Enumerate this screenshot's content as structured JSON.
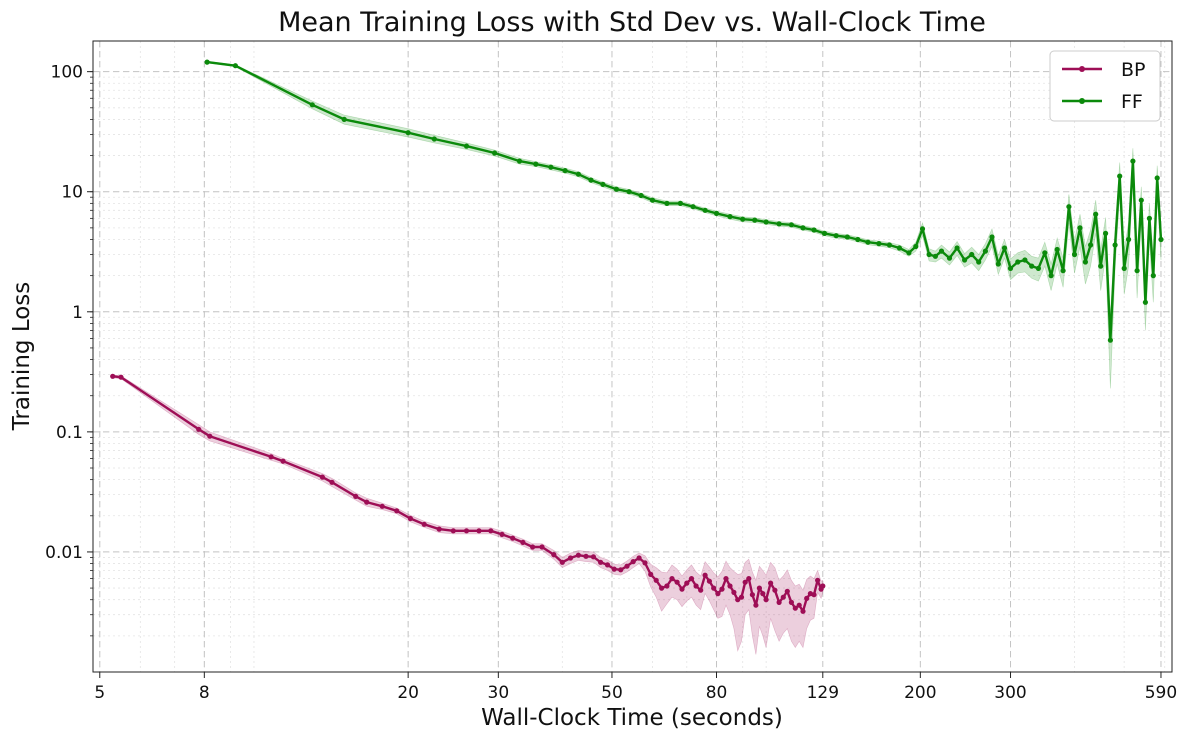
{
  "chart_data": {
    "type": "line",
    "title": "Mean Training Loss with Std Dev vs. Wall-Clock Time",
    "xlabel": "Wall-Clock Time (seconds)",
    "ylabel": "Training Loss",
    "xscale": "log",
    "yscale": "log",
    "xlim": [
      4.85,
      620
    ],
    "ylim": [
      0.001,
      180
    ],
    "grid": true,
    "legend_position": "top-right",
    "x_ticks": [
      5,
      8,
      20,
      30,
      50,
      80,
      129,
      200,
      300,
      590
    ],
    "x_tick_labels": [
      "5",
      "8",
      "20",
      "30",
      "50",
      "80",
      "129",
      "200",
      "300",
      "590"
    ],
    "y_ticks": [
      0.01,
      0.1,
      1,
      10,
      100
    ],
    "y_tick_labels": [
      "0.01",
      "0.1",
      "1",
      "10",
      "100"
    ],
    "series": [
      {
        "name": "BP",
        "color": "#9e0e56",
        "x": [
          5.3,
          5.5,
          7.8,
          8.2,
          10.8,
          11.4,
          13.6,
          14.2,
          15.8,
          16.6,
          17.8,
          19.0,
          20.2,
          21.5,
          23.0,
          24.5,
          26.0,
          27.5,
          29.0,
          30.5,
          32.0,
          33.5,
          35.0,
          36.5,
          38.5,
          40.0,
          41.5,
          43.0,
          44.5,
          46.0,
          47.5,
          49.0,
          50.5,
          52.0,
          53.5,
          55.0,
          56.5,
          58.0,
          59.5,
          61.0,
          62.5,
          64.0,
          65.5,
          67.0,
          68.5,
          70.0,
          71.5,
          73.0,
          74.5,
          76.0,
          77.5,
          79.0,
          80.5,
          82.0,
          83.5,
          85.0,
          86.5,
          88.0,
          89.5,
          91.0,
          92.5,
          94.0,
          95.5,
          97.0,
          98.5,
          100.0,
          102.0,
          104.0,
          106.0,
          108.0,
          110.0,
          112.0,
          114.0,
          116.0,
          118.0,
          120.0,
          122.0,
          124.0,
          126.0,
          128.0,
          129.0
        ],
        "values": [
          0.29,
          0.285,
          0.105,
          0.092,
          0.062,
          0.057,
          0.042,
          0.038,
          0.029,
          0.026,
          0.024,
          0.022,
          0.019,
          0.017,
          0.0155,
          0.015,
          0.015,
          0.015,
          0.015,
          0.014,
          0.013,
          0.012,
          0.011,
          0.011,
          0.0095,
          0.0082,
          0.0089,
          0.0094,
          0.0092,
          0.0091,
          0.0082,
          0.0078,
          0.0072,
          0.0071,
          0.0076,
          0.0083,
          0.0089,
          0.0081,
          0.0065,
          0.0058,
          0.005,
          0.0052,
          0.006,
          0.0056,
          0.0049,
          0.0055,
          0.006,
          0.0052,
          0.0048,
          0.0064,
          0.0057,
          0.005,
          0.0045,
          0.0049,
          0.006,
          0.0052,
          0.0046,
          0.004,
          0.0042,
          0.0056,
          0.006,
          0.0044,
          0.0036,
          0.005,
          0.0045,
          0.004,
          0.0055,
          0.0048,
          0.0038,
          0.0042,
          0.0047,
          0.0038,
          0.0034,
          0.0036,
          0.0032,
          0.0041,
          0.0045,
          0.0044,
          0.0058,
          0.0049,
          0.0052
        ],
        "std": [
          0.008,
          0.008,
          0.01,
          0.008,
          0.004,
          0.003,
          0.003,
          0.003,
          0.002,
          0.002,
          0.0015,
          0.0012,
          0.0012,
          0.001,
          0.001,
          0.0009,
          0.0009,
          0.0009,
          0.0009,
          0.0009,
          0.0008,
          0.0008,
          0.0007,
          0.0007,
          0.0008,
          0.0008,
          0.0009,
          0.0009,
          0.0009,
          0.0009,
          0.0008,
          0.0008,
          0.0007,
          0.0007,
          0.0008,
          0.0009,
          0.0009,
          0.0012,
          0.0014,
          0.0016,
          0.0018,
          0.0015,
          0.0018,
          0.0016,
          0.0014,
          0.0016,
          0.0018,
          0.0016,
          0.0015,
          0.0019,
          0.0018,
          0.0017,
          0.0017,
          0.002,
          0.0024,
          0.0022,
          0.0023,
          0.0025,
          0.0024,
          0.0026,
          0.0027,
          0.0024,
          0.0022,
          0.0026,
          0.0025,
          0.0024,
          0.0027,
          0.0026,
          0.002,
          0.0021,
          0.0024,
          0.002,
          0.0018,
          0.0018,
          0.0016,
          0.0018,
          0.0018,
          0.0016,
          0.0012,
          0.0008,
          0.0006
        ]
      },
      {
        "name": "FF",
        "color": "#0b8a0b",
        "x": [
          8.1,
          9.2,
          13.0,
          15.0,
          20.0,
          22.5,
          26.0,
          29.5,
          33.0,
          35.5,
          38.0,
          40.5,
          43.0,
          45.5,
          48.0,
          51.0,
          54.0,
          57.0,
          60.0,
          64.0,
          68.0,
          72.0,
          76.0,
          80.0,
          85.0,
          90.0,
          95.0,
          100.0,
          106.0,
          112.0,
          118.0,
          124.0,
          130.0,
          137.0,
          144.0,
          151.0,
          158.0,
          166.0,
          174.0,
          182.0,
          190.0,
          196.0,
          202.0,
          208.0,
          214.0,
          220.0,
          228.0,
          236.0,
          244.0,
          252.0,
          260.0,
          268.0,
          276.0,
          284.0,
          292.0,
          300.0,
          310.0,
          320.0,
          330.0,
          340.0,
          350.0,
          360.0,
          370.0,
          380.0,
          390.0,
          400.0,
          410.0,
          420.0,
          430.0,
          440.0,
          450.0,
          460.0,
          470.0,
          480.0,
          490.0,
          500.0,
          510.0,
          520.0,
          530.0,
          540.0,
          550.0,
          560.0,
          570.0,
          580.0,
          590.0
        ],
        "values": [
          120,
          112,
          53,
          40,
          31,
          27.5,
          24,
          21,
          18,
          17,
          16,
          15,
          14,
          12.5,
          11.5,
          10.5,
          10,
          9.3,
          8.5,
          8.0,
          8.0,
          7.5,
          7.0,
          6.6,
          6.2,
          5.9,
          5.8,
          5.6,
          5.4,
          5.3,
          5.0,
          4.8,
          4.5,
          4.3,
          4.2,
          4.0,
          3.8,
          3.7,
          3.6,
          3.4,
          3.1,
          3.5,
          4.9,
          3.0,
          2.9,
          3.2,
          2.8,
          3.4,
          2.7,
          3.0,
          2.6,
          3.2,
          4.2,
          2.5,
          3.4,
          2.3,
          2.6,
          2.7,
          2.4,
          2.3,
          3.1,
          2.0,
          3.3,
          2.2,
          7.5,
          3.0,
          5.0,
          2.6,
          3.6,
          6.5,
          2.4,
          4.5,
          0.58,
          3.6,
          13.5,
          2.3,
          4.0,
          18,
          2.2,
          8.5,
          1.2,
          6.0,
          2.0,
          13,
          4.0
        ],
        "std": [
          2.0,
          2.0,
          4.0,
          3.5,
          2.5,
          2.0,
          1.5,
          1.2,
          1.0,
          0.8,
          0.8,
          0.7,
          0.7,
          0.6,
          0.55,
          0.5,
          0.45,
          0.4,
          0.4,
          0.35,
          0.35,
          0.3,
          0.3,
          0.3,
          0.3,
          0.28,
          0.27,
          0.25,
          0.24,
          0.23,
          0.22,
          0.2,
          0.2,
          0.2,
          0.18,
          0.18,
          0.18,
          0.18,
          0.18,
          0.2,
          0.2,
          0.3,
          0.6,
          0.35,
          0.3,
          0.4,
          0.35,
          0.45,
          0.35,
          0.45,
          0.4,
          0.5,
          0.7,
          0.45,
          0.6,
          0.45,
          0.5,
          0.55,
          0.5,
          0.5,
          0.7,
          0.5,
          0.8,
          0.6,
          2.0,
          0.9,
          1.5,
          0.9,
          1.2,
          2.0,
          0.9,
          1.6,
          0.35,
          1.3,
          4.0,
          0.9,
          1.6,
          5.0,
          0.9,
          2.5,
          0.5,
          2.0,
          0.8,
          3.5,
          1.3
        ]
      }
    ]
  }
}
